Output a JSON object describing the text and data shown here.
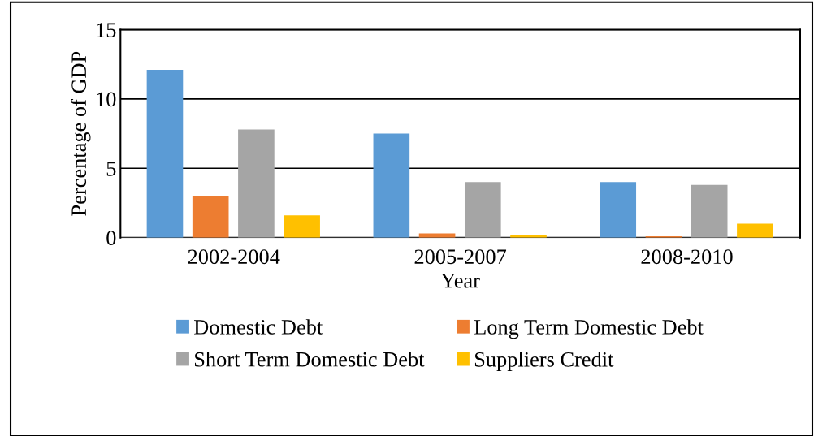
{
  "chart_data": {
    "type": "bar",
    "xlabel": "Year",
    "ylabel": "Percentage of GDP",
    "categories": [
      "2002-2004",
      "2005-2007",
      "2008-2010"
    ],
    "series": [
      {
        "name": "Domestic Debt",
        "color": "#5b9bd5",
        "values": [
          12.1,
          7.5,
          4.0
        ]
      },
      {
        "name": "Long Term Domestic Debt",
        "color": "#ed7d31",
        "values": [
          3.0,
          0.3,
          0.1
        ]
      },
      {
        "name": "Short Term Domestic Debt",
        "color": "#a5a5a5",
        "values": [
          7.8,
          4.0,
          3.8
        ]
      },
      {
        "name": "Suppliers Credit",
        "color": "#ffc000",
        "values": [
          1.6,
          0.2,
          1.0
        ]
      }
    ],
    "ylim": [
      0,
      15
    ],
    "yticks": [
      0,
      5,
      10,
      15
    ],
    "grid": "y",
    "legend": "bottom"
  }
}
